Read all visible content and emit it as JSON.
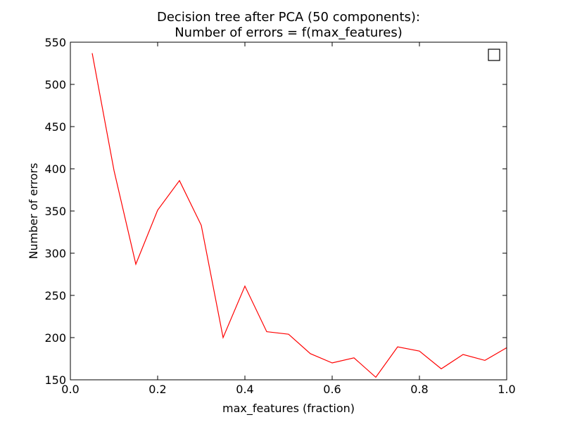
{
  "chart_data": {
    "type": "line",
    "title": [
      "Decision tree after PCA (50 components):",
      "Number of errors = f(max_features)"
    ],
    "xlabel": "max_features (fraction)",
    "ylabel": "Number of errors",
    "xlim": [
      0.0,
      1.0
    ],
    "ylim": [
      150,
      550
    ],
    "xticks": [
      0.0,
      0.2,
      0.4,
      0.6,
      0.8,
      1.0
    ],
    "xtick_labels": [
      "0.0",
      "0.2",
      "0.4",
      "0.6",
      "0.8",
      "1.0"
    ],
    "yticks": [
      150,
      200,
      250,
      300,
      350,
      400,
      450,
      500,
      550
    ],
    "ytick_labels": [
      "150",
      "200",
      "250",
      "300",
      "350",
      "400",
      "450",
      "500",
      "550"
    ],
    "grid": false,
    "legend": {
      "position": "top-right",
      "entries": []
    },
    "series": [
      {
        "color": "#ff0000",
        "x": [
          0.05,
          0.1,
          0.15,
          0.2,
          0.25,
          0.3,
          0.35,
          0.4,
          0.45,
          0.5,
          0.55,
          0.6,
          0.65,
          0.7,
          0.75,
          0.8,
          0.85,
          0.9,
          0.95,
          1.0
        ],
        "y": [
          537,
          398,
          287,
          351,
          386,
          333,
          200,
          261,
          207,
          204,
          181,
          170,
          176,
          153,
          189,
          184,
          163,
          180,
          173,
          188
        ]
      }
    ]
  }
}
